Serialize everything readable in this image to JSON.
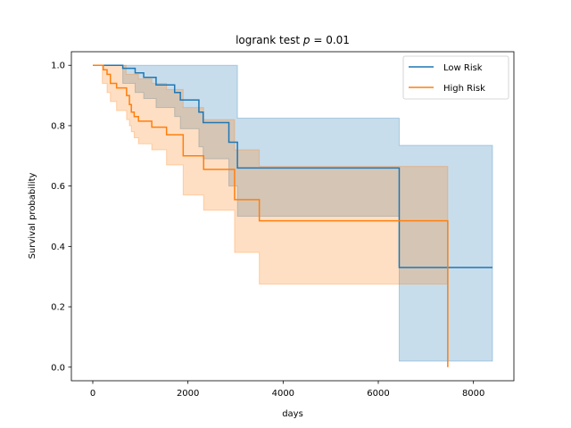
{
  "chart_data": {
    "type": "line",
    "title": "logrank test",
    "title_stat": "p",
    "title_value": "= 0.01",
    "xlabel": "days",
    "ylabel": "Survival probability",
    "xlim": [
      -450,
      8850
    ],
    "ylim": [
      -0.045,
      1.045
    ],
    "xticks": [
      0,
      2000,
      4000,
      6000,
      8000
    ],
    "yticks": [
      0.0,
      0.2,
      0.4,
      0.6,
      0.8,
      1.0
    ],
    "xtick_labels": [
      "0",
      "2000",
      "4000",
      "6000",
      "8000"
    ],
    "ytick_labels": [
      "0.0",
      "0.2",
      "0.4",
      "0.6",
      "0.8",
      "1.0"
    ],
    "grid": false,
    "legend_position": "top-right",
    "series": [
      {
        "name": "Low Risk",
        "color": "#1f77b4",
        "steps": [
          [
            0,
            1.0
          ],
          [
            630,
            0.99
          ],
          [
            890,
            0.975
          ],
          [
            1070,
            0.96
          ],
          [
            1330,
            0.935
          ],
          [
            1720,
            0.91
          ],
          [
            1840,
            0.885
          ],
          [
            2230,
            0.845
          ],
          [
            2320,
            0.81
          ],
          [
            2860,
            0.745
          ],
          [
            3040,
            0.66
          ],
          [
            6440,
            0.33
          ],
          [
            8400,
            0.33
          ]
        ],
        "ci_upper": [
          [
            0,
            1.0
          ],
          [
            3040,
            1.0
          ],
          [
            3040,
            0.825
          ],
          [
            6440,
            0.825
          ],
          [
            6440,
            0.735
          ],
          [
            8400,
            0.735
          ]
        ],
        "ci_lower": [
          [
            0,
            1.0
          ],
          [
            630,
            1.0
          ],
          [
            630,
            0.94
          ],
          [
            890,
            0.94
          ],
          [
            890,
            0.91
          ],
          [
            1070,
            0.91
          ],
          [
            1070,
            0.89
          ],
          [
            1330,
            0.89
          ],
          [
            1330,
            0.86
          ],
          [
            1720,
            0.86
          ],
          [
            1720,
            0.83
          ],
          [
            1840,
            0.83
          ],
          [
            1840,
            0.79
          ],
          [
            2230,
            0.79
          ],
          [
            2230,
            0.73
          ],
          [
            2320,
            0.73
          ],
          [
            2320,
            0.69
          ],
          [
            2860,
            0.69
          ],
          [
            2860,
            0.6
          ],
          [
            3040,
            0.6
          ],
          [
            3040,
            0.5
          ],
          [
            6440,
            0.5
          ],
          [
            6440,
            0.02
          ],
          [
            8400,
            0.02
          ]
        ]
      },
      {
        "name": "High Risk",
        "color": "#ff7f0e",
        "steps": [
          [
            0,
            1.0
          ],
          [
            220,
            0.985
          ],
          [
            300,
            0.97
          ],
          [
            370,
            0.94
          ],
          [
            500,
            0.925
          ],
          [
            710,
            0.9
          ],
          [
            770,
            0.87
          ],
          [
            810,
            0.845
          ],
          [
            870,
            0.83
          ],
          [
            960,
            0.815
          ],
          [
            1240,
            0.795
          ],
          [
            1550,
            0.77
          ],
          [
            1900,
            0.7
          ],
          [
            2330,
            0.655
          ],
          [
            2980,
            0.555
          ],
          [
            3500,
            0.485
          ],
          [
            7460,
            0.485
          ],
          [
            7460,
            0.0
          ]
        ],
        "ci_upper": [
          [
            0,
            1.0
          ],
          [
            700,
            1.0
          ],
          [
            700,
            0.97
          ],
          [
            960,
            0.97
          ],
          [
            960,
            0.955
          ],
          [
            1240,
            0.955
          ],
          [
            1240,
            0.94
          ],
          [
            1550,
            0.94
          ],
          [
            1550,
            0.92
          ],
          [
            1900,
            0.92
          ],
          [
            1900,
            0.86
          ],
          [
            2330,
            0.86
          ],
          [
            2330,
            0.82
          ],
          [
            2980,
            0.82
          ],
          [
            2980,
            0.72
          ],
          [
            3500,
            0.72
          ],
          [
            3500,
            0.665
          ],
          [
            7460,
            0.665
          ]
        ],
        "ci_lower": [
          [
            0,
            1.0
          ],
          [
            200,
            1.0
          ],
          [
            200,
            0.94
          ],
          [
            300,
            0.94
          ],
          [
            300,
            0.91
          ],
          [
            370,
            0.91
          ],
          [
            370,
            0.88
          ],
          [
            500,
            0.88
          ],
          [
            500,
            0.85
          ],
          [
            710,
            0.85
          ],
          [
            710,
            0.82
          ],
          [
            770,
            0.82
          ],
          [
            770,
            0.8
          ],
          [
            810,
            0.8
          ],
          [
            810,
            0.78
          ],
          [
            870,
            0.78
          ],
          [
            870,
            0.76
          ],
          [
            960,
            0.76
          ],
          [
            960,
            0.74
          ],
          [
            1240,
            0.74
          ],
          [
            1240,
            0.72
          ],
          [
            1550,
            0.72
          ],
          [
            1550,
            0.67
          ],
          [
            1900,
            0.67
          ],
          [
            1900,
            0.57
          ],
          [
            2330,
            0.57
          ],
          [
            2330,
            0.52
          ],
          [
            2980,
            0.52
          ],
          [
            2980,
            0.38
          ],
          [
            3500,
            0.38
          ],
          [
            3500,
            0.275
          ],
          [
            7460,
            0.275
          ]
        ]
      }
    ]
  }
}
